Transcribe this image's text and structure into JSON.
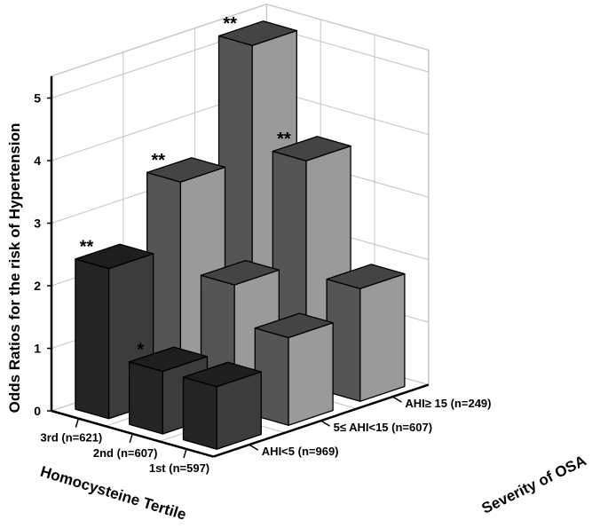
{
  "chart_data": {
    "type": "bar3d",
    "ylabel": "Odds Ratios for the risk of Hypertension",
    "x_axis_title": "Homocysteine Tertile",
    "z_axis_title": "Severity of OSA",
    "x_categories": [
      "3rd (n=621)",
      "2nd (n=607)",
      "1st (n=597)"
    ],
    "z_categories": [
      "AHI<5 (n=969)",
      "5≤ AHI<15 (n=607)",
      "AHI≥ 15 (n=249)"
    ],
    "ylim": [
      0,
      5
    ],
    "yticks": [
      "0",
      "1",
      "2",
      "3",
      "4",
      "5"
    ],
    "grid": true,
    "series": [
      {
        "values": [
          2.4,
          1.0,
          1.0
        ]
      },
      {
        "values": [
          3.4,
          2.0,
          1.4
        ]
      },
      {
        "values": [
          5.2,
          3.6,
          1.8
        ]
      }
    ],
    "annotations": [
      {
        "x": "3rd (n=621)",
        "z": "AHI<5 (n=969)",
        "text": "**"
      },
      {
        "x": "3rd (n=621)",
        "z": "5≤ AHI<15 (n=607)",
        "text": "**"
      },
      {
        "x": "3rd (n=621)",
        "z": "AHI≥ 15 (n=249)",
        "text": "**"
      },
      {
        "x": "2nd (n=607)",
        "z": "AHI<5 (n=969)",
        "text": "*"
      },
      {
        "x": "2nd (n=607)",
        "z": "AHI≥ 15 (n=249)",
        "text": "**"
      }
    ],
    "colors": {
      "bar_front_light": "#555555",
      "bar_side_light": "#9a9a9a",
      "bar_top_light": "#444444",
      "bar_front_dark": "#242424",
      "bar_side_dark": "#3c3c3c",
      "bar_top_dark": "#1e1e1e",
      "grid": "#c4c4c4",
      "axis": "#000000"
    }
  }
}
